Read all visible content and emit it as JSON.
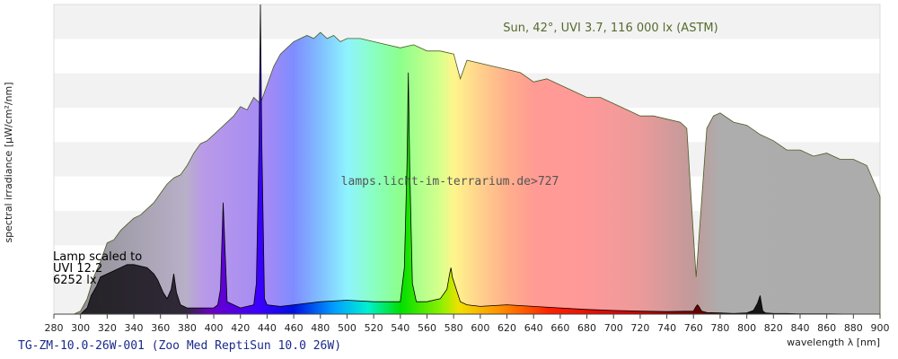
{
  "chart_data": {
    "type": "area",
    "xlabel": "wavelength λ [nm]",
    "ylabel": "spectral irradiance [µW/cm²/nm]",
    "xlim": [
      280,
      900
    ],
    "ylim": [
      0,
      1
    ],
    "x_ticks": [
      280,
      300,
      320,
      340,
      360,
      380,
      400,
      420,
      440,
      460,
      480,
      500,
      520,
      540,
      560,
      580,
      600,
      620,
      640,
      660,
      680,
      700,
      720,
      740,
      760,
      780,
      800,
      820,
      840,
      860,
      880,
      900
    ],
    "y_ticks_labeled": false,
    "grid": "horizontal bands",
    "annotations": {
      "sun": "Sun, 42°, UVI 3.7, 116 000 lx (ASTM)",
      "lamp_line1": "Lamp scaled to",
      "lamp_line2": "UVI 12.2",
      "lamp_line3": "6252 lx",
      "watermark": "lamps.licht-im-terrarium.de>727",
      "caption": "TG-ZM-10.0-26W-001 (Zoo Med ReptiSun 10.0 26W)"
    },
    "series": [
      {
        "name": "Sun",
        "x": [
          295,
          300,
          305,
          310,
          315,
          320,
          325,
          330,
          335,
          340,
          345,
          350,
          355,
          360,
          365,
          370,
          375,
          380,
          385,
          390,
          395,
          400,
          405,
          410,
          415,
          420,
          425,
          430,
          435,
          440,
          445,
          450,
          455,
          460,
          465,
          470,
          475,
          480,
          485,
          490,
          495,
          500,
          510,
          520,
          530,
          540,
          550,
          560,
          570,
          580,
          585,
          590,
          600,
          610,
          620,
          630,
          640,
          650,
          660,
          670,
          680,
          690,
          700,
          710,
          720,
          730,
          740,
          750,
          755,
          760,
          762,
          765,
          770,
          775,
          780,
          790,
          800,
          810,
          820,
          830,
          840,
          850,
          860,
          870,
          880,
          890,
          900
        ],
        "y": [
          0.0,
          0.01,
          0.05,
          0.12,
          0.17,
          0.23,
          0.24,
          0.27,
          0.29,
          0.31,
          0.32,
          0.34,
          0.36,
          0.39,
          0.42,
          0.44,
          0.45,
          0.48,
          0.52,
          0.55,
          0.56,
          0.58,
          0.6,
          0.62,
          0.64,
          0.67,
          0.66,
          0.7,
          0.68,
          0.74,
          0.8,
          0.84,
          0.86,
          0.88,
          0.89,
          0.9,
          0.89,
          0.91,
          0.89,
          0.9,
          0.88,
          0.89,
          0.89,
          0.88,
          0.87,
          0.86,
          0.87,
          0.85,
          0.85,
          0.84,
          0.76,
          0.82,
          0.81,
          0.8,
          0.79,
          0.78,
          0.75,
          0.76,
          0.74,
          0.72,
          0.7,
          0.7,
          0.68,
          0.66,
          0.64,
          0.64,
          0.63,
          0.62,
          0.6,
          0.25,
          0.12,
          0.3,
          0.6,
          0.64,
          0.65,
          0.62,
          0.61,
          0.58,
          0.56,
          0.53,
          0.53,
          0.51,
          0.52,
          0.5,
          0.5,
          0.48,
          0.38
        ]
      },
      {
        "name": "Lamp",
        "x": [
          300,
          305,
          308,
          312,
          315,
          320,
          325,
          330,
          335,
          340,
          345,
          350,
          355,
          358,
          362,
          365,
          368,
          370,
          372,
          375,
          380,
          390,
          400,
          403,
          405,
          407,
          410,
          420,
          430,
          432,
          434,
          435,
          436,
          438,
          440,
          450,
          460,
          480,
          500,
          520,
          540,
          543,
          545,
          546,
          547,
          549,
          552,
          560,
          570,
          575,
          577,
          578,
          579,
          582,
          585,
          590,
          600,
          620,
          640,
          660,
          680,
          700,
          720,
          740,
          760,
          762,
          763,
          764,
          766,
          770,
          780,
          790,
          800,
          805,
          808,
          810,
          811,
          812,
          814,
          820,
          830,
          840,
          860,
          880,
          900
        ],
        "y": [
          0.0,
          0.02,
          0.06,
          0.09,
          0.12,
          0.13,
          0.14,
          0.15,
          0.16,
          0.16,
          0.155,
          0.15,
          0.13,
          0.11,
          0.07,
          0.05,
          0.08,
          0.13,
          0.07,
          0.03,
          0.02,
          0.02,
          0.02,
          0.03,
          0.08,
          0.36,
          0.04,
          0.02,
          0.03,
          0.1,
          0.56,
          1.0,
          0.56,
          0.05,
          0.03,
          0.025,
          0.03,
          0.04,
          0.045,
          0.04,
          0.04,
          0.15,
          0.48,
          0.78,
          0.48,
          0.1,
          0.04,
          0.04,
          0.05,
          0.08,
          0.13,
          0.15,
          0.12,
          0.08,
          0.04,
          0.03,
          0.025,
          0.03,
          0.025,
          0.02,
          0.015,
          0.012,
          0.01,
          0.008,
          0.01,
          0.025,
          0.03,
          0.025,
          0.01,
          0.005,
          0.004,
          0.002,
          0.004,
          0.012,
          0.035,
          0.06,
          0.035,
          0.01,
          0.004,
          0.002,
          0.002,
          0.001,
          0.001,
          0.0,
          0.0
        ]
      }
    ]
  }
}
